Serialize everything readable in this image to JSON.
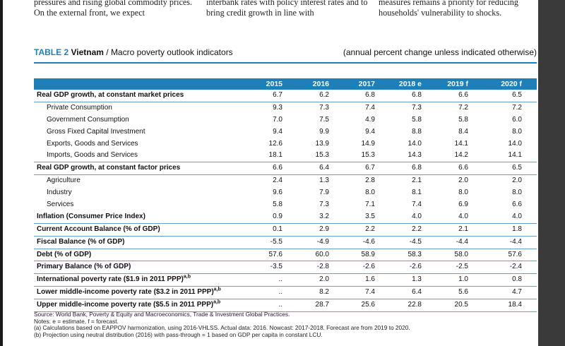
{
  "body_text": {
    "col1": "pressures and rising global commodity prices. On the external front, we expect",
    "col2": "interbank rates with policy interest rates and to bring credit growth in line with",
    "col3": "measures remains a priority for reducing households' vulnerability to shocks."
  },
  "table": {
    "label": "TABLE 2",
    "country": "Vietnam",
    "title_rest": " / Macro poverty outlook indicators",
    "unit_note": "(annual percent change unless indicated otherwise)",
    "years": [
      "2015",
      "2016",
      "2017",
      "2018 e",
      "2019 f",
      "2020 f"
    ],
    "rows": [
      {
        "label": "Real GDP growth, at constant market prices",
        "bold": true,
        "values": [
          "6.7",
          "6.2",
          "6.8",
          "6.8",
          "6.6",
          "6.5"
        ]
      },
      {
        "label": "Private Consumption",
        "values": [
          "9.3",
          "7.3",
          "7.4",
          "7.3",
          "7.2",
          "7.2"
        ]
      },
      {
        "label": "Government Consumption",
        "values": [
          "7.0",
          "7.5",
          "4.9",
          "5.8",
          "5.8",
          "6.0"
        ]
      },
      {
        "label": "Gross Fixed Capital Investment",
        "values": [
          "9.4",
          "9.9",
          "9.4",
          "8.8",
          "8.4",
          "8.0"
        ]
      },
      {
        "label": "Exports, Goods and Services",
        "values": [
          "12.6",
          "13.9",
          "14.9",
          "14.0",
          "14.1",
          "14.0"
        ]
      },
      {
        "label": "Imports, Goods and Services",
        "values": [
          "18.1",
          "15.3",
          "15.3",
          "14.3",
          "14.2",
          "14.1"
        ]
      },
      {
        "label": "Real GDP growth, at constant factor prices",
        "bold": true,
        "values": [
          "6.6",
          "6.4",
          "6.7",
          "6.8",
          "6.6",
          "6.5"
        ]
      },
      {
        "label": "Agriculture",
        "values": [
          "2.4",
          "1.3",
          "2.8",
          "2.1",
          "2.0",
          "2.0"
        ]
      },
      {
        "label": "Industry",
        "values": [
          "9.6",
          "7.9",
          "8.0",
          "8.1",
          "8.0",
          "8.0"
        ]
      },
      {
        "label": "Services",
        "values": [
          "5.8",
          "7.3",
          "7.1",
          "7.4",
          "6.9",
          "6.6"
        ]
      },
      {
        "label": "Inflation (Consumer Price Index)",
        "bold": true,
        "values": [
          "0.9",
          "3.2",
          "3.5",
          "4.0",
          "4.0",
          "4.0"
        ]
      },
      {
        "label": "Current Account Balance (% of GDP)",
        "bold": true,
        "values": [
          "0.1",
          "2.9",
          "2.2",
          "2.2",
          "2.1",
          "1.8"
        ]
      },
      {
        "label": "Fiscal Balance (% of GDP)",
        "bold": true,
        "values": [
          "-5.5",
          "-4.9",
          "-4.6",
          "-4.5",
          "-4.4",
          "-4.4"
        ]
      },
      {
        "label": "Debt (% of GDP)",
        "bold": true,
        "values": [
          "57.6",
          "60.0",
          "58.9",
          "58.3",
          "58.0",
          "57.6"
        ]
      },
      {
        "label": "Primary Balance (% of GDP)",
        "bold": true,
        "values": [
          "-3.5",
          "-2.8",
          "-2.6",
          "-2.6",
          "-2.5",
          "-2.4"
        ]
      },
      {
        "label": "International poverty rate ($1.9 in 2011 PPP)",
        "sup": "a,b",
        "bold": true,
        "values": [
          "..",
          "2.0",
          "1.6",
          "1.3",
          "1.0",
          "0.8"
        ]
      },
      {
        "label": "Lower middle-income poverty rate ($3.2 in 2011 PPP)",
        "sup": "a,b",
        "bold": true,
        "values": [
          "..",
          "8.2",
          "7.4",
          "6.4",
          "5.6",
          "4.7"
        ]
      },
      {
        "label": "Upper middle-income poverty rate ($5.5 in 2011 PPP)",
        "sup": "a,b",
        "bold": true,
        "values": [
          "..",
          "28.7",
          "25.6",
          "22.8",
          "20.5",
          "18.4"
        ]
      }
    ]
  },
  "notes": [
    "Source: World Bank, Poverty & Equity and Macroeconomics, Trade & Investment Global Practices.",
    "Notes: e = estimate, f = forecast.",
    "(a) Calculations based on EAPPOV harmonization, using 2016-VHLSS. Actual data: 2016. Nowcast: 2017-2018. Forecast are from 2019 to 2020.",
    "(b) Projection using neutral distribution (2016) with pass-through = 1 based on GDP per capita in constant LCU."
  ]
}
